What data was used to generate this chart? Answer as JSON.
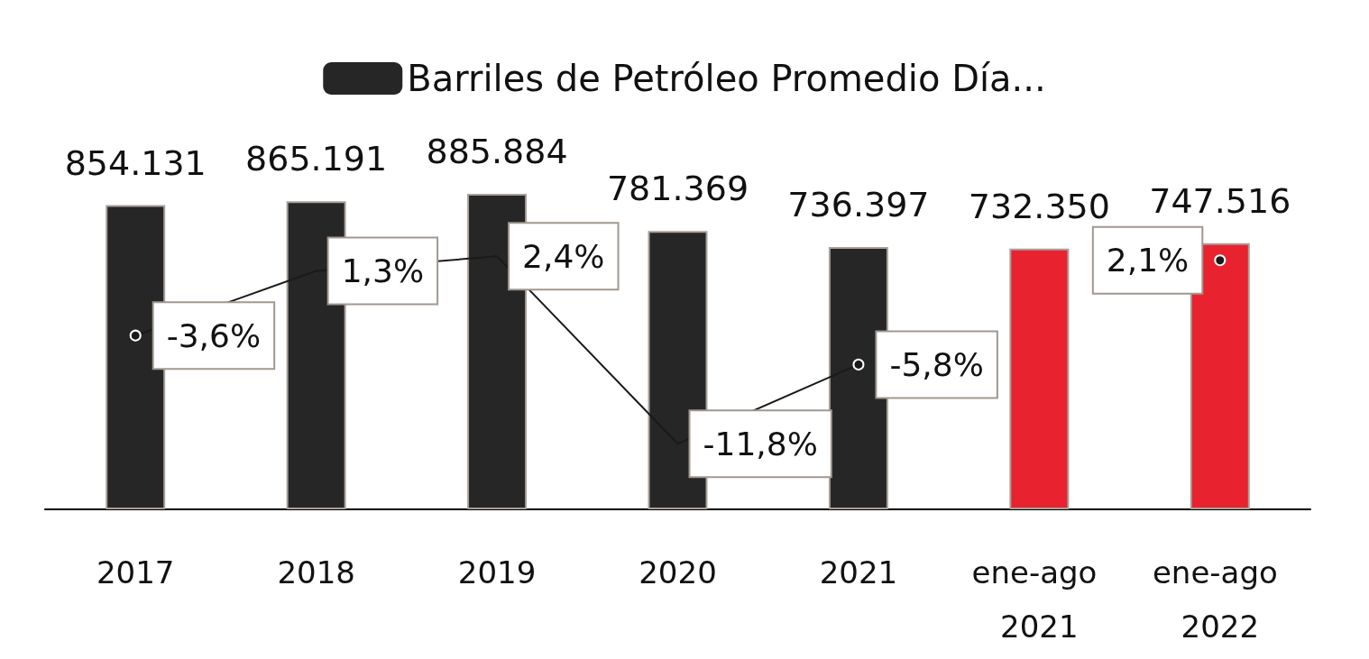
{
  "chart_data": {
    "type": "bar",
    "categories": [
      "2017",
      "2018",
      "2019",
      "2020",
      "2021",
      "ene-ago 2021",
      "ene-ago 2022"
    ],
    "series": [
      {
        "name": "Barriles de Petróleo Promedio Día...",
        "color": "#262626",
        "colors": [
          "#262626",
          "#262626",
          "#262626",
          "#262626",
          "#262626",
          "#e8222f",
          "#e8222f"
        ],
        "values": [
          854131,
          865191,
          885884,
          781369,
          736397,
          732350,
          747516
        ],
        "value_labels": [
          "854.131",
          "865.191",
          "885.884",
          "781.369",
          "736.397",
          "732.350",
          "747.516"
        ]
      },
      {
        "type": "line",
        "axis": "y2",
        "color": "#1a1a1a",
        "values": [
          -3.6,
          1.3,
          2.4,
          -11.8,
          -5.8,
          null,
          2.1
        ],
        "value_labels": [
          "-3,6%",
          "1,3%",
          "2,4%",
          "-11,8%",
          "-5,8%",
          null,
          "2,1%"
        ]
      }
    ],
    "legend": "top",
    "tick_labels": "x",
    "grid": false
  }
}
